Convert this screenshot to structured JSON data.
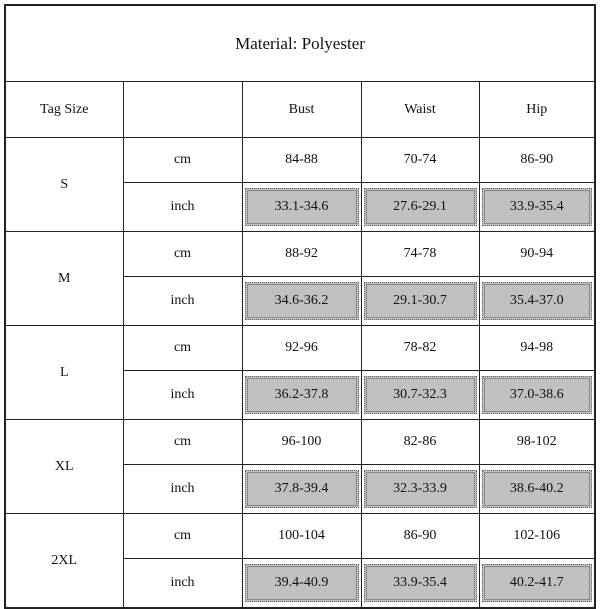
{
  "title": "Material: Polyester",
  "headers": {
    "tag_size": "Tag Size",
    "unit": "",
    "bust": "Bust",
    "waist": "Waist",
    "hip": "Hip"
  },
  "shade_color": "#c0c0c0",
  "sizes": [
    {
      "size": "S",
      "cm": {
        "unit": "cm",
        "bust": "84-88",
        "waist": "70-74",
        "hip": "86-90"
      },
      "inch": {
        "unit": "inch",
        "bust": "33.1-34.6",
        "waist": "27.6-29.1",
        "hip": "33.9-35.4"
      }
    },
    {
      "size": "M",
      "cm": {
        "unit": "cm",
        "bust": "88-92",
        "waist": "74-78",
        "hip": "90-94"
      },
      "inch": {
        "unit": "inch",
        "bust": "34.6-36.2",
        "waist": "29.1-30.7",
        "hip": "35.4-37.0"
      }
    },
    {
      "size": "L",
      "cm": {
        "unit": "cm",
        "bust": "92-96",
        "waist": "78-82",
        "hip": "94-98"
      },
      "inch": {
        "unit": "inch",
        "bust": "36.2-37.8",
        "waist": "30.7-32.3",
        "hip": "37.0-38.6"
      }
    },
    {
      "size": "XL",
      "cm": {
        "unit": "cm",
        "bust": "96-100",
        "waist": "82-86",
        "hip": "98-102"
      },
      "inch": {
        "unit": "inch",
        "bust": "37.8-39.4",
        "waist": "32.3-33.9",
        "hip": "38.6-40.2"
      }
    },
    {
      "size": "2XL",
      "cm": {
        "unit": "cm",
        "bust": "100-104",
        "waist": "86-90",
        "hip": "102-106"
      },
      "inch": {
        "unit": "inch",
        "bust": "39.4-40.9",
        "waist": "33.9-35.4",
        "hip": "40.2-41.7"
      }
    }
  ]
}
